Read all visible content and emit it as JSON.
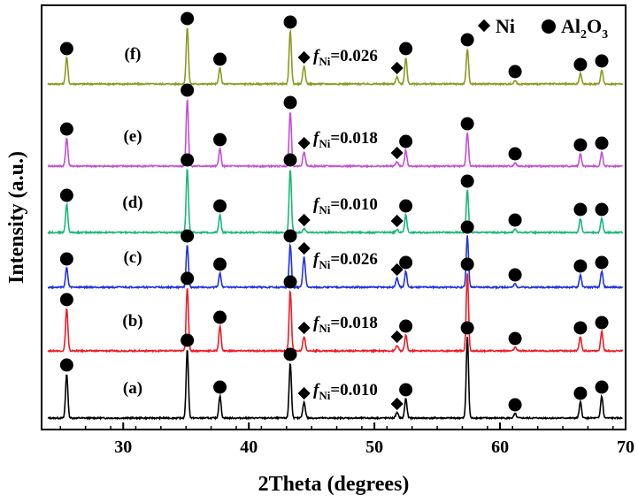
{
  "chart_data": {
    "type": "line",
    "xlabel": "2Theta (degrees)",
    "ylabel": "Intensity (a.u.)",
    "xlim": [
      23.5,
      70
    ],
    "x_ticks": [
      "30",
      "40",
      "50",
      "60",
      "70"
    ],
    "x_tick_values": [
      30,
      40,
      50,
      60,
      70
    ],
    "legend": {
      "placement": "top-right",
      "entries": [
        {
          "marker": "diamond",
          "label": "Ni"
        },
        {
          "marker": "circle",
          "label": "Al",
          "sub": "2",
          "label_end": "O",
          "sub2": "3"
        }
      ]
    },
    "al2o3_peaks": [
      25.5,
      35.1,
      37.7,
      43.3,
      52.5,
      57.4,
      61.2,
      66.4,
      68.1
    ],
    "ni_peaks": [
      44.4,
      51.8
    ],
    "series": [
      {
        "label": "(a)",
        "color": "#000000",
        "f_symbol": "f",
        "f_sub": "Ni",
        "f_value": "=0.010",
        "peak_heights": {
          "al2o3": [
            50,
            78,
            25,
            62,
            22,
            92,
            5,
            18,
            25
          ],
          "ni": [
            18,
            6
          ]
        }
      },
      {
        "label": "(b)",
        "color": "#ee1c25",
        "f_symbol": "f",
        "f_sub": "Ni",
        "f_value": "=0.018",
        "peak_heights": {
          "al2o3": [
            48,
            72,
            28,
            68,
            18,
            88,
            4,
            16,
            22
          ],
          "ni": [
            16,
            6
          ]
        }
      },
      {
        "label": "(c)",
        "color": "#2233dd",
        "f_symbol": "f",
        "f_sub": "Ni",
        "f_value": "=0.026",
        "peak_heights": {
          "al2o3": [
            22,
            48,
            16,
            48,
            18,
            58,
            4,
            14,
            18
          ],
          "ni": [
            34,
            10
          ]
        }
      },
      {
        "label": "(d)",
        "color": "#1ab77a",
        "f_symbol": "f",
        "f_sub": "Ni",
        "f_value": "=0.010",
        "peak_heights": {
          "al2o3": [
            32,
            72,
            20,
            72,
            20,
            48,
            4,
            16,
            16
          ],
          "ni": [
            4,
            3
          ]
        }
      },
      {
        "label": "(e)",
        "color": "#c44fd6",
        "f_symbol": "f",
        "f_sub": "Ni",
        "f_value": "=0.018",
        "peak_heights": {
          "al2o3": [
            32,
            76,
            20,
            62,
            18,
            38,
            4,
            14,
            16
          ],
          "ni": [
            16,
            5
          ]
        }
      },
      {
        "label": "(f)",
        "color": "#8c9a20",
        "f_symbol": "f",
        "f_sub": "Ni",
        "f_value": "=0.026",
        "peak_heights": {
          "al2o3": [
            30,
            64,
            18,
            60,
            30,
            40,
            4,
            12,
            16
          ],
          "ni": [
            20,
            8
          ]
        }
      }
    ]
  }
}
